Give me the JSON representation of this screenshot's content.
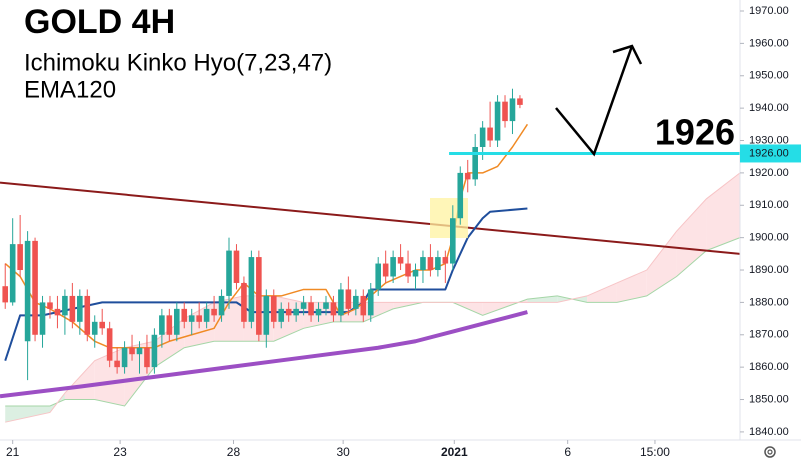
{
  "chart_data": {
    "type": "candlestick",
    "title": "GOLD 4H",
    "subtitle": "Ichimoku Kinko Hyo(7,23,47)",
    "indicator": "EMA120",
    "annotation": "1926",
    "up_color": "#26a69a",
    "down_color": "#ef5350",
    "xlim": [
      -0.7,
      98.5
    ],
    "ylim": [
      1837.5,
      1973.4
    ],
    "grid": false,
    "yticks": [
      {
        "value": 1840,
        "label": "1840.00"
      },
      {
        "value": 1850,
        "label": "1850.00"
      },
      {
        "value": 1860,
        "label": "1860.00"
      },
      {
        "value": 1870,
        "label": "1870.00"
      },
      {
        "value": 1880,
        "label": "1880.00"
      },
      {
        "value": 1890,
        "label": "1890.00"
      },
      {
        "value": 1900,
        "label": "1900.00"
      },
      {
        "value": 1910,
        "label": "1910.00"
      },
      {
        "value": 1920,
        "label": "1920.00"
      },
      {
        "value": 1930,
        "label": "1930.00"
      },
      {
        "value": 1940,
        "label": "1940.00"
      },
      {
        "value": 1950,
        "label": "1950.00"
      },
      {
        "value": 1960,
        "label": "1960.00"
      },
      {
        "value": 1970,
        "label": "1970.00"
      }
    ],
    "xticks": [
      {
        "value": 1,
        "label": "21"
      },
      {
        "value": 15.4,
        "label": "23"
      },
      {
        "value": 30.6,
        "label": "28"
      },
      {
        "value": 45.3,
        "label": "30"
      },
      {
        "value": 60.2,
        "label": "2021"
      },
      {
        "value": 75.4,
        "label": "6"
      },
      {
        "value": 87.1,
        "label": "15:00"
      }
    ],
    "ohlc": [
      [
        1885,
        1892,
        1878,
        1880
      ],
      [
        1880,
        1906,
        1879,
        1898
      ],
      [
        1898,
        1907,
        1888,
        1890
      ],
      [
        1868,
        1902,
        1856,
        1899
      ],
      [
        1899,
        1900,
        1868,
        1870
      ],
      [
        1870,
        1882,
        1866,
        1880
      ],
      [
        1880,
        1882,
        1875,
        1878
      ],
      [
        1878,
        1882,
        1872,
        1876
      ],
      [
        1876,
        1884,
        1870,
        1882
      ],
      [
        1882,
        1886,
        1872,
        1874
      ],
      [
        1874,
        1884,
        1870,
        1882
      ],
      [
        1882,
        1884,
        1868,
        1870
      ],
      [
        1870,
        1876,
        1866,
        1874
      ],
      [
        1874,
        1878,
        1870,
        1872
      ],
      [
        1872,
        1874,
        1860,
        1862
      ],
      [
        1862,
        1866,
        1858,
        1860
      ],
      [
        1860,
        1868,
        1858,
        1866
      ],
      [
        1866,
        1870,
        1862,
        1864
      ],
      [
        1864,
        1868,
        1858,
        1866
      ],
      [
        1866,
        1870,
        1858,
        1860
      ],
      [
        1860,
        1872,
        1858,
        1870
      ],
      [
        1870,
        1878,
        1866,
        1876
      ],
      [
        1876,
        1878,
        1868,
        1870
      ],
      [
        1870,
        1880,
        1868,
        1878
      ],
      [
        1878,
        1880,
        1872,
        1874
      ],
      [
        1874,
        1878,
        1870,
        1876
      ],
      [
        1876,
        1880,
        1872,
        1874
      ],
      [
        1874,
        1880,
        1872,
        1878
      ],
      [
        1878,
        1882,
        1874,
        1876
      ],
      [
        1876,
        1884,
        1874,
        1882
      ],
      [
        1882,
        1900,
        1878,
        1896
      ],
      [
        1896,
        1898,
        1884,
        1886
      ],
      [
        1886,
        1888,
        1872,
        1874
      ],
      [
        1874,
        1896,
        1872,
        1894
      ],
      [
        1894,
        1896,
        1868,
        1870
      ],
      [
        1870,
        1884,
        1866,
        1882
      ],
      [
        1882,
        1884,
        1872,
        1874
      ],
      [
        1874,
        1880,
        1872,
        1878
      ],
      [
        1878,
        1880,
        1874,
        1876
      ],
      [
        1876,
        1880,
        1874,
        1878
      ],
      [
        1878,
        1882,
        1876,
        1880
      ],
      [
        1880,
        1882,
        1874,
        1876
      ],
      [
        1876,
        1880,
        1874,
        1878
      ],
      [
        1878,
        1882,
        1876,
        1880
      ],
      [
        1880,
        1882,
        1874,
        1876
      ],
      [
        1876,
        1886,
        1874,
        1884
      ],
      [
        1884,
        1888,
        1876,
        1878
      ],
      [
        1878,
        1884,
        1876,
        1882
      ],
      [
        1882,
        1884,
        1874,
        1876
      ],
      [
        1876,
        1886,
        1874,
        1884
      ],
      [
        1884,
        1894,
        1882,
        1892
      ],
      [
        1892,
        1896,
        1886,
        1888
      ],
      [
        1888,
        1896,
        1886,
        1894
      ],
      [
        1894,
        1898,
        1890,
        1892
      ],
      [
        1892,
        1896,
        1886,
        1888
      ],
      [
        1888,
        1892,
        1884,
        1890
      ],
      [
        1890,
        1896,
        1886,
        1894
      ],
      [
        1894,
        1898,
        1888,
        1890
      ],
      [
        1890,
        1896,
        1888,
        1894
      ],
      [
        1894,
        1896,
        1886,
        1892
      ],
      [
        1892,
        1910,
        1890,
        1906
      ],
      [
        1906,
        1922,
        1904,
        1920
      ],
      [
        1920,
        1924,
        1914,
        1918
      ],
      [
        1918,
        1932,
        1916,
        1928
      ],
      [
        1928,
        1936,
        1924,
        1934
      ],
      [
        1934,
        1942,
        1928,
        1930
      ],
      [
        1930,
        1944,
        1928,
        1942
      ],
      [
        1942,
        1944,
        1934,
        1936
      ],
      [
        1936,
        1946,
        1932,
        1943
      ],
      [
        1943,
        1944,
        1940,
        1941
      ]
    ],
    "cloud": {
      "x": [
        0,
        6,
        8,
        12,
        16,
        20,
        24,
        28,
        32,
        36,
        40,
        44,
        48,
        52,
        56,
        60,
        64,
        70,
        74,
        78,
        82,
        86,
        90,
        94,
        98.5
      ],
      "span_a": [
        1848,
        1848,
        1850,
        1850,
        1848,
        1860,
        1866,
        1868,
        1868,
        1868,
        1872,
        1874,
        1874,
        1878,
        1880,
        1880,
        1876,
        1881,
        1882,
        1880,
        1880,
        1882,
        1888,
        1896,
        1900
      ],
      "span_b": [
        1843,
        1846,
        1852,
        1862,
        1866,
        1868,
        1875,
        1880,
        1882,
        1882,
        1880,
        1880,
        1880,
        1880,
        1880,
        1880,
        1880,
        1880,
        1880,
        1882,
        1886,
        1890,
        1902,
        1912,
        1920
      ],
      "up_fill": "#dcefe2",
      "down_fill": "#fde3e5",
      "up_line": "#a5d6a7",
      "down_line": "#f7c4c6"
    },
    "lines": [
      {
        "color": "#8b1a1a",
        "width": 2,
        "x": [
          -0.7,
          98.5
        ],
        "values": [
          1917,
          1895
        ]
      },
      {
        "color": "#9c4fc4",
        "width": 4,
        "x": [
          -0.7,
          10,
          20,
          30,
          40,
          50,
          55,
          60,
          65,
          70
        ],
        "values": [
          1851,
          1854,
          1857,
          1860,
          1863,
          1866,
          1868,
          1871,
          1874,
          1877
        ]
      },
      {
        "color": "#1f4e9c",
        "width": 2,
        "x": [
          0,
          2,
          5,
          13,
          31,
          33,
          46,
          48,
          49,
          59,
          60,
          62,
          64,
          65,
          70
        ],
        "values": [
          1862,
          1876,
          1876,
          1880,
          1880,
          1877,
          1877,
          1880,
          1884,
          1884,
          1890,
          1900,
          1906,
          1908,
          1909
        ]
      },
      {
        "color": "#f08a24",
        "width": 1.5,
        "x": [
          0,
          2,
          4,
          6,
          9,
          12,
          14,
          17,
          20,
          22,
          25,
          28,
          30,
          32,
          34,
          37,
          40,
          43,
          45,
          47,
          49,
          51,
          53,
          55,
          57,
          59,
          60,
          61,
          62,
          64,
          66,
          68,
          70
        ],
        "values": [
          1892,
          1888,
          1880,
          1878,
          1874,
          1868,
          1866,
          1866,
          1866,
          1868,
          1870,
          1872,
          1880,
          1886,
          1882,
          1882,
          1884,
          1884,
          1876,
          1878,
          1882,
          1886,
          1888,
          1890,
          1890,
          1892,
          1900,
          1912,
          1920,
          1920,
          1922,
          1928,
          1935
        ]
      }
    ],
    "level": {
      "x": [
        59.5,
        98.5
      ],
      "value": 1926,
      "value_label": "1926.00",
      "color": "#25dde6"
    }
  }
}
